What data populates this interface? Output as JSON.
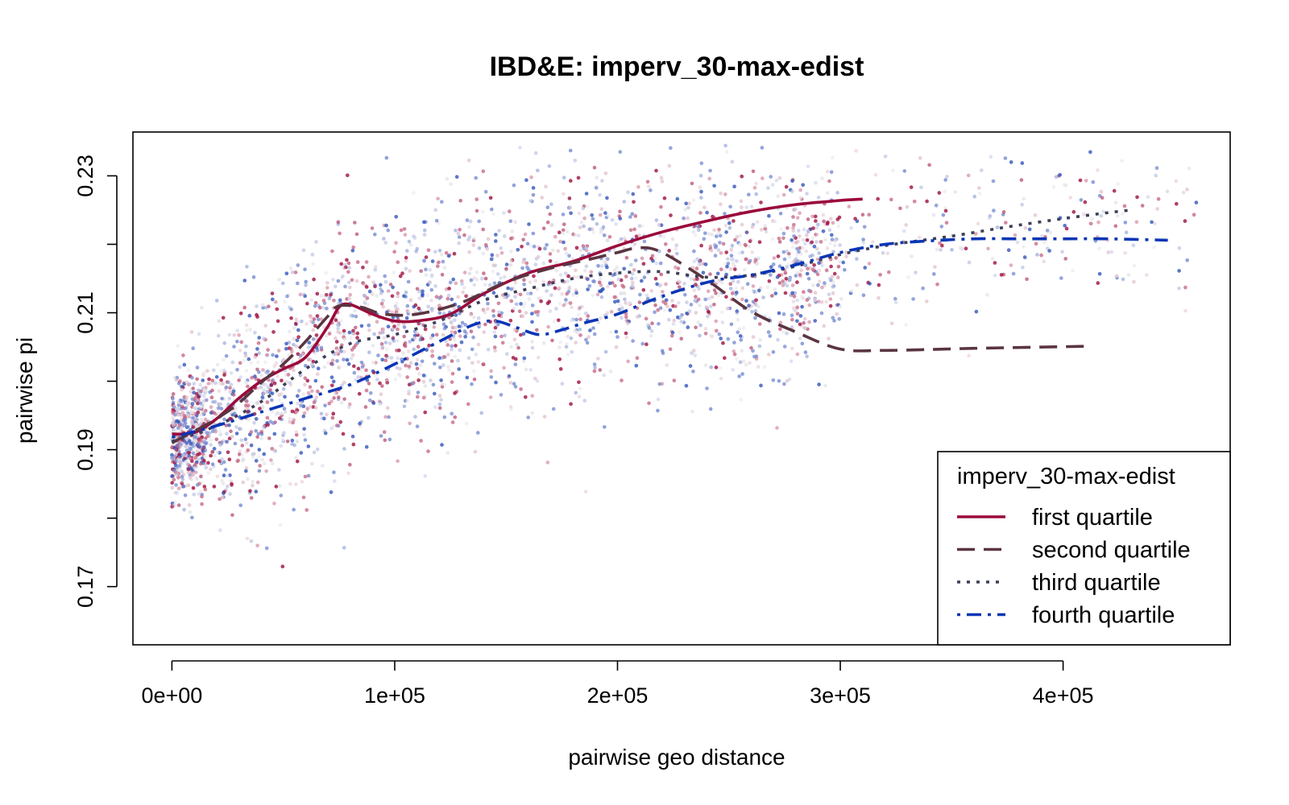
{
  "chart_data": {
    "type": "scatter",
    "title": "IBD&E: imperv_30-max-edist",
    "xlabel": "pairwise geo distance",
    "ylabel": "pairwise pi",
    "xlim": [
      -17500,
      475000
    ],
    "ylim": [
      0.1615,
      0.2364
    ],
    "x_ticks": [
      0,
      100000,
      200000,
      300000,
      400000
    ],
    "x_tick_labels": [
      "0e+00",
      "1e+05",
      "2e+05",
      "3e+05",
      "4e+05"
    ],
    "y_ticks": [
      0.17,
      0.18,
      0.19,
      0.2,
      0.21,
      0.22,
      0.23
    ],
    "y_tick_labels": [
      "0.17",
      "",
      "0.19",
      "",
      "0.21",
      "",
      "0.23"
    ],
    "grid": false,
    "legend": {
      "title": "imperv_30-max-edist",
      "position": "bottom-right",
      "entries": [
        "first quartile",
        "second quartile",
        "third quartile",
        "fourth quartile"
      ]
    },
    "point_colors": [
      "#9e0f3f",
      "#c96b86",
      "#e3c5cf",
      "#e6e6ea",
      "#c3cbe6",
      "#7b8fd4",
      "#3355bb"
    ],
    "series": [
      {
        "name": "first quartile",
        "color": "#9b0a3a",
        "line_style": "solid",
        "x": [
          0,
          10000,
          20000,
          30000,
          40000,
          50000,
          60000,
          70000,
          75000,
          80000,
          90000,
          100000,
          110000,
          125000,
          140000,
          160000,
          180000,
          200000,
          220000,
          240000,
          260000,
          280000,
          300000,
          310000
        ],
        "y": [
          0.1923,
          0.1925,
          0.1945,
          0.1975,
          0.2,
          0.2018,
          0.2035,
          0.208,
          0.2108,
          0.2112,
          0.2098,
          0.2088,
          0.2088,
          0.2098,
          0.2128,
          0.2158,
          0.2175,
          0.2198,
          0.2218,
          0.2234,
          0.2248,
          0.2258,
          0.2264,
          0.2266
        ]
      },
      {
        "name": "second quartile",
        "color": "#5a3540",
        "line_style": "dashed",
        "x": [
          0,
          10000,
          20000,
          30000,
          40000,
          50000,
          60000,
          70000,
          75000,
          85000,
          95000,
          110000,
          130000,
          150000,
          170000,
          190000,
          200000,
          210000,
          220000,
          240000,
          260000,
          280000,
          300000,
          320000,
          360000,
          410000
        ],
        "y": [
          0.191,
          0.1927,
          0.1945,
          0.1968,
          0.1998,
          0.2025,
          0.2058,
          0.2095,
          0.211,
          0.2108,
          0.2098,
          0.2098,
          0.2115,
          0.2145,
          0.2165,
          0.218,
          0.2188,
          0.2195,
          0.2188,
          0.2148,
          0.2102,
          0.2072,
          0.2047,
          0.2045,
          0.2048,
          0.2051
        ]
      },
      {
        "name": "third quartile",
        "color": "#3d3f58",
        "line_style": "dotted",
        "x": [
          0,
          20000,
          40000,
          60000,
          80000,
          100000,
          120000,
          140000,
          160000,
          180000,
          200000,
          220000,
          240000,
          260000,
          280000,
          300000,
          320000,
          350000,
          380000,
          410000,
          430000
        ],
        "y": [
          0.1912,
          0.1935,
          0.197,
          0.2018,
          0.2055,
          0.2068,
          0.2088,
          0.2118,
          0.2135,
          0.215,
          0.2158,
          0.216,
          0.2152,
          0.2155,
          0.2168,
          0.2185,
          0.2198,
          0.2212,
          0.2228,
          0.2242,
          0.225
        ]
      },
      {
        "name": "fourth quartile",
        "color": "#0a35b5",
        "line_style": "dotdash",
        "x": [
          0,
          20000,
          40000,
          60000,
          80000,
          100000,
          120000,
          135000,
          145000,
          155000,
          165000,
          175000,
          185000,
          200000,
          215000,
          230000,
          245000,
          260000,
          280000,
          300000,
          320000,
          340000,
          360000,
          380000,
          400000,
          420000,
          447000
        ],
        "y": [
          0.1918,
          0.1935,
          0.1955,
          0.1975,
          0.1995,
          0.2025,
          0.2058,
          0.2082,
          0.2088,
          0.2078,
          0.2068,
          0.2075,
          0.2085,
          0.2098,
          0.2118,
          0.2135,
          0.2148,
          0.2155,
          0.217,
          0.2188,
          0.22,
          0.2205,
          0.2208,
          0.2208,
          0.2208,
          0.2208,
          0.2206
        ]
      }
    ]
  }
}
